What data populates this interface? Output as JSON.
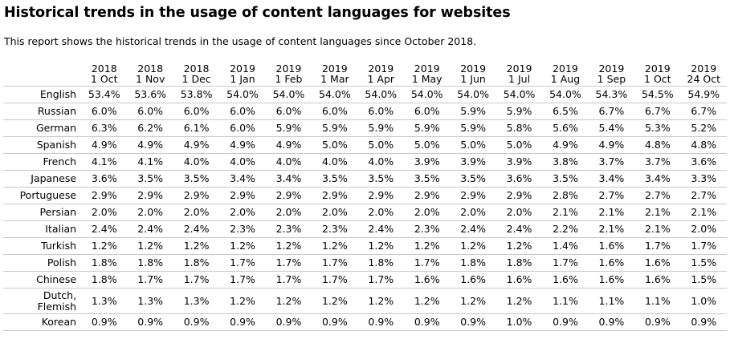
{
  "title": "Historical trends in the usage of content languages for websites",
  "subtitle": "This report shows the historical trends in the usage of content languages since October 2018.",
  "columns": [
    {
      "year": "2018",
      "day": "1 Oct"
    },
    {
      "year": "2018",
      "day": "1 Nov"
    },
    {
      "year": "2018",
      "day": "1 Dec"
    },
    {
      "year": "2019",
      "day": "1 Jan"
    },
    {
      "year": "2019",
      "day": "1 Feb"
    },
    {
      "year": "2019",
      "day": "1 Mar"
    },
    {
      "year": "2019",
      "day": "1 Apr"
    },
    {
      "year": "2019",
      "day": "1 May"
    },
    {
      "year": "2019",
      "day": "1 Jun"
    },
    {
      "year": "2019",
      "day": "1 Jul"
    },
    {
      "year": "2019",
      "day": "1 Aug"
    },
    {
      "year": "2019",
      "day": "1 Sep"
    },
    {
      "year": "2019",
      "day": "1 Oct"
    },
    {
      "year": "2019",
      "day": "24 Oct"
    }
  ],
  "rows": [
    {
      "language": "English",
      "values": [
        "53.4%",
        "53.6%",
        "53.8%",
        "54.0%",
        "54.0%",
        "54.0%",
        "54.0%",
        "54.0%",
        "54.0%",
        "54.0%",
        "54.0%",
        "54.3%",
        "54.5%",
        "54.9%"
      ]
    },
    {
      "language": "Russian",
      "values": [
        "6.0%",
        "6.0%",
        "6.0%",
        "6.0%",
        "6.0%",
        "6.0%",
        "6.0%",
        "6.0%",
        "5.9%",
        "5.9%",
        "6.5%",
        "6.7%",
        "6.7%",
        "6.7%"
      ]
    },
    {
      "language": "German",
      "values": [
        "6.3%",
        "6.2%",
        "6.1%",
        "6.0%",
        "5.9%",
        "5.9%",
        "5.9%",
        "5.9%",
        "5.9%",
        "5.8%",
        "5.6%",
        "5.4%",
        "5.3%",
        "5.2%"
      ]
    },
    {
      "language": "Spanish",
      "values": [
        "4.9%",
        "4.9%",
        "4.9%",
        "4.9%",
        "4.9%",
        "5.0%",
        "5.0%",
        "5.0%",
        "5.0%",
        "5.0%",
        "4.9%",
        "4.9%",
        "4.8%",
        "4.8%"
      ]
    },
    {
      "language": "French",
      "values": [
        "4.1%",
        "4.1%",
        "4.0%",
        "4.0%",
        "4.0%",
        "4.0%",
        "4.0%",
        "3.9%",
        "3.9%",
        "3.9%",
        "3.8%",
        "3.7%",
        "3.7%",
        "3.6%"
      ]
    },
    {
      "language": "Japanese",
      "values": [
        "3.6%",
        "3.5%",
        "3.5%",
        "3.4%",
        "3.4%",
        "3.5%",
        "3.5%",
        "3.5%",
        "3.5%",
        "3.6%",
        "3.5%",
        "3.4%",
        "3.4%",
        "3.3%"
      ]
    },
    {
      "language": "Portuguese",
      "values": [
        "2.9%",
        "2.9%",
        "2.9%",
        "2.9%",
        "2.9%",
        "2.9%",
        "2.9%",
        "2.9%",
        "2.9%",
        "2.9%",
        "2.8%",
        "2.7%",
        "2.7%",
        "2.7%"
      ]
    },
    {
      "language": "Persian",
      "values": [
        "2.0%",
        "2.0%",
        "2.0%",
        "2.0%",
        "2.0%",
        "2.0%",
        "2.0%",
        "2.0%",
        "2.0%",
        "2.0%",
        "2.1%",
        "2.1%",
        "2.1%",
        "2.1%"
      ]
    },
    {
      "language": "Italian",
      "values": [
        "2.4%",
        "2.4%",
        "2.4%",
        "2.3%",
        "2.3%",
        "2.3%",
        "2.4%",
        "2.3%",
        "2.4%",
        "2.4%",
        "2.2%",
        "2.1%",
        "2.1%",
        "2.0%"
      ]
    },
    {
      "language": "Turkish",
      "values": [
        "1.2%",
        "1.2%",
        "1.2%",
        "1.2%",
        "1.2%",
        "1.2%",
        "1.2%",
        "1.2%",
        "1.2%",
        "1.2%",
        "1.4%",
        "1.6%",
        "1.7%",
        "1.7%"
      ]
    },
    {
      "language": "Polish",
      "values": [
        "1.8%",
        "1.8%",
        "1.8%",
        "1.7%",
        "1.7%",
        "1.7%",
        "1.8%",
        "1.7%",
        "1.8%",
        "1.8%",
        "1.7%",
        "1.6%",
        "1.6%",
        "1.5%"
      ]
    },
    {
      "language": "Chinese",
      "values": [
        "1.8%",
        "1.7%",
        "1.7%",
        "1.7%",
        "1.7%",
        "1.7%",
        "1.7%",
        "1.6%",
        "1.6%",
        "1.6%",
        "1.6%",
        "1.6%",
        "1.6%",
        "1.5%"
      ]
    },
    {
      "language": "Dutch, Flemish",
      "values": [
        "1.3%",
        "1.3%",
        "1.3%",
        "1.2%",
        "1.2%",
        "1.2%",
        "1.2%",
        "1.2%",
        "1.2%",
        "1.2%",
        "1.1%",
        "1.1%",
        "1.1%",
        "1.0%"
      ]
    },
    {
      "language": "Korean",
      "values": [
        "0.9%",
        "0.9%",
        "0.9%",
        "0.9%",
        "0.9%",
        "0.9%",
        "0.9%",
        "0.9%",
        "0.9%",
        "1.0%",
        "0.9%",
        "0.9%",
        "0.9%",
        "0.9%"
      ]
    }
  ]
}
